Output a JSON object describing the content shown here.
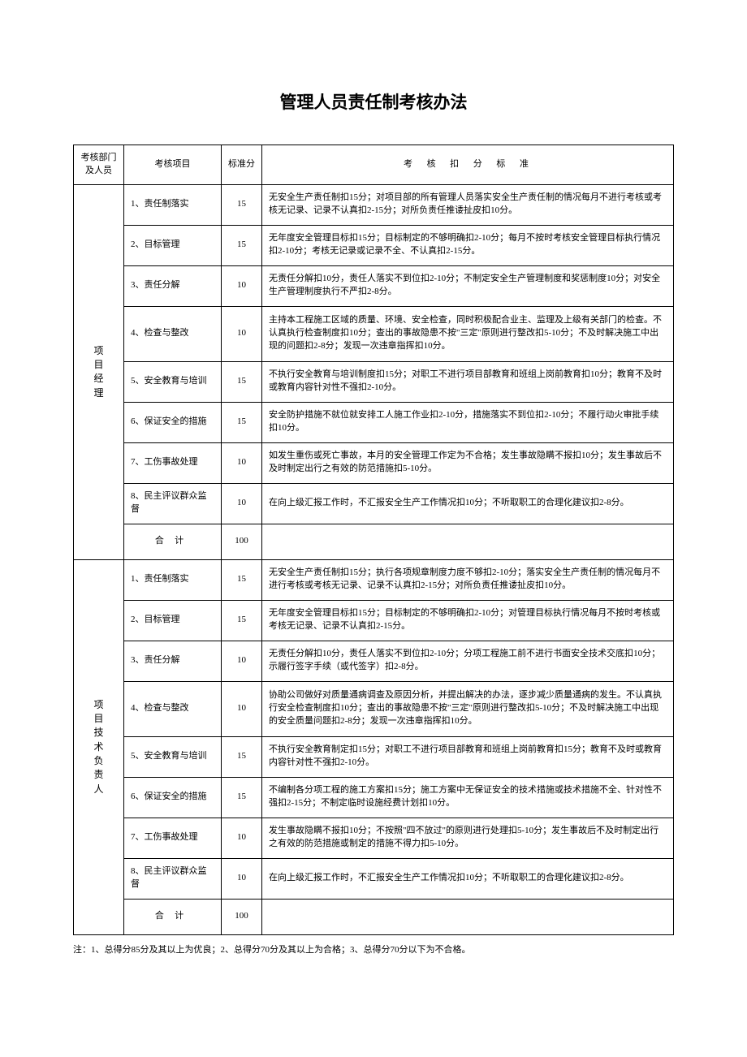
{
  "title": "管理人员责任制考核办法",
  "headers": {
    "dept": "考核部门及人员",
    "item": "考核项目",
    "score": "标准分",
    "standard": "考核扣分标准"
  },
  "sections": [
    {
      "dept": "项目经理",
      "rows": [
        {
          "item": "1、责任制落实",
          "score": "15",
          "standard": "无安全生产责任制扣15分；对项目部的所有管理人员落实安全生产责任制的情况每月不进行考核或考核无记录、记录不认真扣2-15分；对所负责任推诿扯皮扣10分。"
        },
        {
          "item": "2、目标管理",
          "score": "15",
          "standard": "无年度安全管理目标扣15分；目标制定的不够明确扣2-10分；每月不按时考核安全管理目标执行情况扣2-10分；考核无记录或记录不全、不认真扣2-15分。"
        },
        {
          "item": "3、责任分解",
          "score": "10",
          "standard": "无责任分解扣10分，责任人落实不到位扣2-10分；不制定安全生产管理制度和奖惩制度10分；对安全生产管理制度执行不严扣2-8分。"
        },
        {
          "item": "4、检查与整改",
          "score": "10",
          "standard": "主持本工程施工区域的质量、环境、安全检查，同时积极配合业主、监理及上级有关部门的检查。不认真执行检查制度扣10分；查出的事故隐患不按\"三定\"原则进行整改扣5-10分；不及时解决施工中出现的问题扣2-8分；发现一次违章指挥扣10分。",
          "tall": true
        },
        {
          "item": "5、安全教育与培训",
          "score": "15",
          "standard": "不执行安全教育与培训制度扣15分；对职工不进行项目部教育和班组上岗前教育扣10分；教育不及时或教育内容针对性不强扣2-10分。"
        },
        {
          "item": "6、保证安全的措施",
          "score": "15",
          "standard": "安全防护措施不就位就安排工人施工作业扣2-10分，措施落实不到位扣2-10分；不履行动火审批手续扣10分。"
        },
        {
          "item": "7、工伤事故处理",
          "score": "10",
          "standard": "如发生重伤或死亡事故，本月的安全管理工作定为不合格；发生事故隐瞒不报扣10分；发生事故后不及时制定出行之有效的防范措施扣5-10分。"
        },
        {
          "item": "8、民主评议群众监督",
          "score": "10",
          "standard": "在向上级汇报工作时，不汇报安全生产工作情况扣10分；不听取职工的合理化建议扣2-8分。"
        }
      ],
      "total": {
        "label": "合计",
        "score": "100"
      }
    },
    {
      "dept": "项目技术负责人",
      "rows": [
        {
          "item": "1、责任制落实",
          "score": "15",
          "standard": "无安全生产责任制扣15分；执行各项规章制度力度不够扣2-10分；落实安全生产责任制的情况每月不进行考核或考核无记录、记录不认真扣2-15分；对所负责任推诿扯皮扣10分。"
        },
        {
          "item": "2、目标管理",
          "score": "15",
          "standard": "无年度安全管理目标扣15分；目标制定的不够明确扣2-10分；对管理目标执行情况每月不按时考核或考核无记录、记录不认真扣2-15分。"
        },
        {
          "item": "3、责任分解",
          "score": "10",
          "standard": "无责任分解扣10分，责任人落实不到位扣2-10分；分项工程施工前不进行书面安全技术交底扣10分；示履行签字手续（或代签字）扣2-8分。"
        },
        {
          "item": "4、检查与整改",
          "score": "10",
          "standard": "协助公司做好对质量通病调查及原因分析，并提出解决的办法，逐步减少质量通病的发生。不认真执行安全检查制度扣10分；查出的事故隐患不按\"三定\"原则进行整改扣5-10分；不及时解决施工中出现的安全质量问题扣2-8分；发现一次违章指挥扣10分。",
          "tall": true
        },
        {
          "item": "5、安全教育与培训",
          "score": "15",
          "standard": "不执行安全教育制定扣15分；对职工不进行项目部教育和班组上岗前教育扣15分；教育不及时或教育内容针对性不强扣2-10分。"
        },
        {
          "item": "6、保证安全的措施",
          "score": "15",
          "standard": "不编制各分项工程的施工方案扣15分；施工方案中无保证安全的技术措施或技术措施不全、针对性不强扣2-15分；不制定临时设施经费计划扣10分。"
        },
        {
          "item": "7、工伤事故处理",
          "score": "10",
          "standard": "发生事故隐瞒不报扣10分；不按照\"四不放过\"的原则进行处理扣5-10分；发生事故后不及时制定出行之有效的防范措施或制定的措施不得力扣5-10分。"
        },
        {
          "item": "8、民主评议群众监督",
          "score": "10",
          "standard": "在向上级汇报工作时，不汇报安全生产工作情况扣10分；不听取职工的合理化建议扣2-8分。"
        }
      ],
      "total": {
        "label": "合计",
        "score": "100"
      }
    }
  ],
  "footnote": "注：1、总得分85分及其以上为优良；2、总得分70分及其以上为合格；3、总得分70分以下为不合格。"
}
